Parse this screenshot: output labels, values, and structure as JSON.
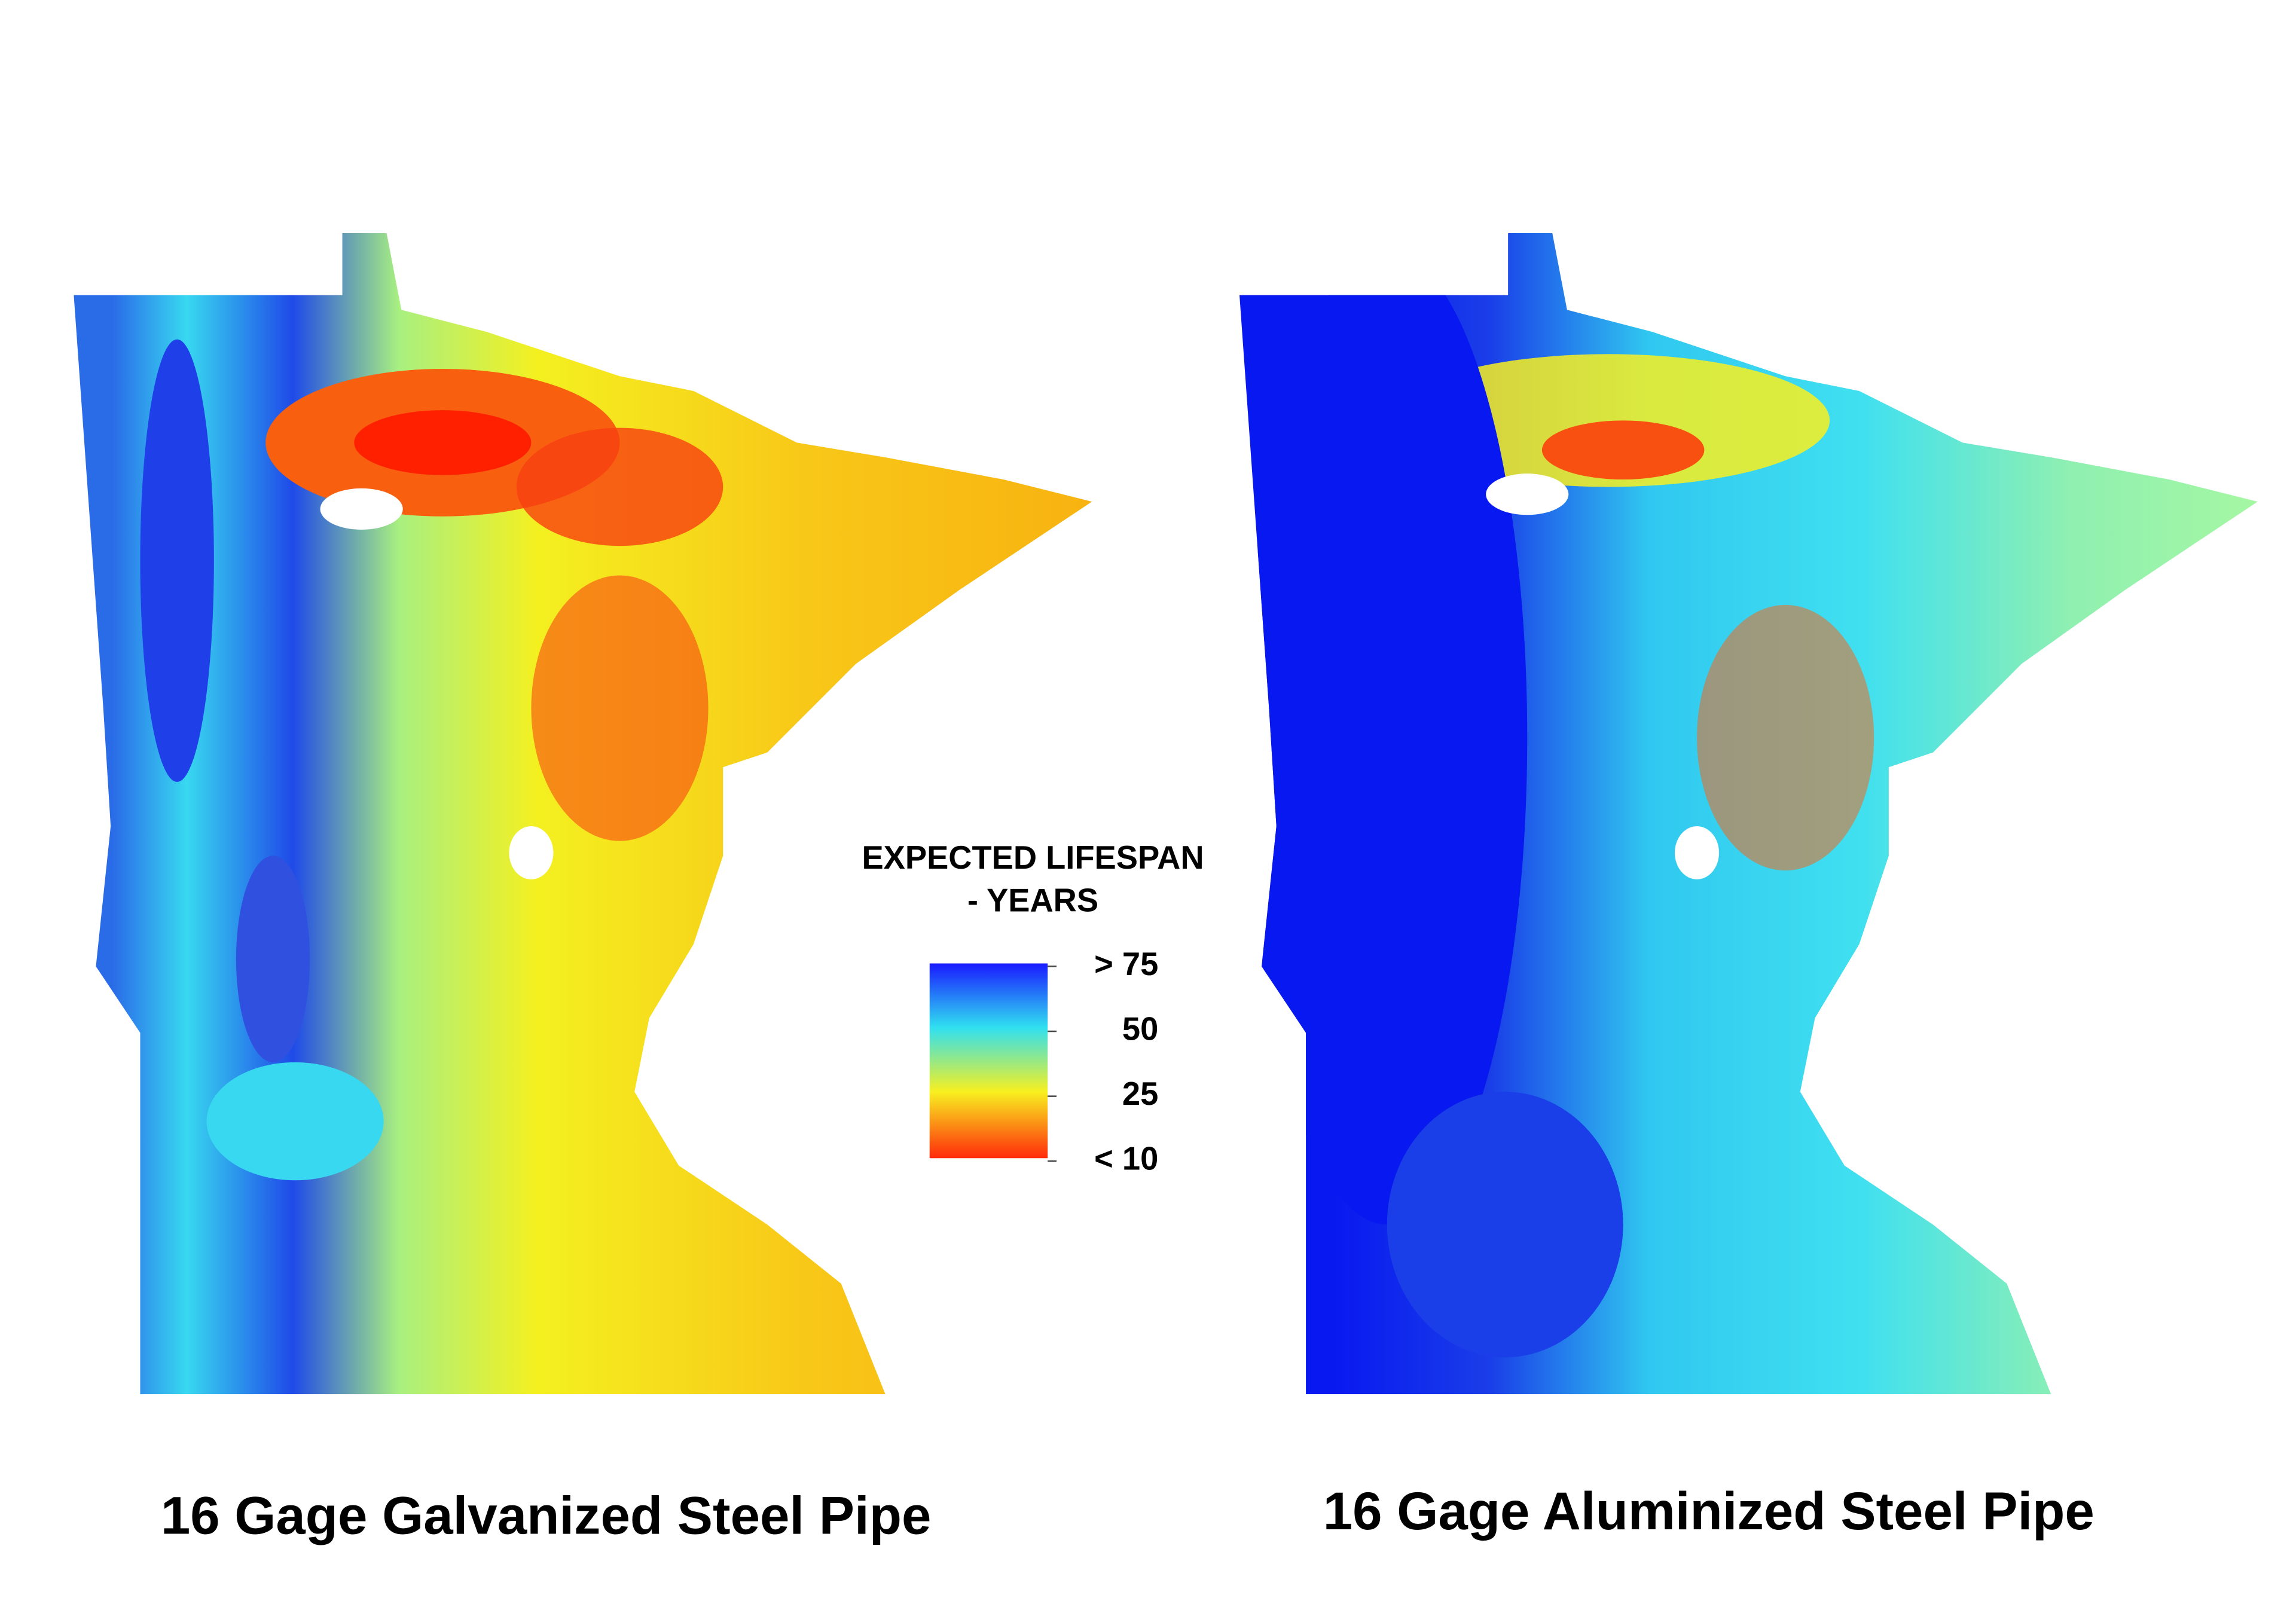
{
  "maps": [
    {
      "title": "16 Gage Galvanized Steel Pipe"
    },
    {
      "title": "16 Gage Aluminized Steel Pipe"
    }
  ],
  "legend": {
    "title": [
      "EXPECTED LIFESPAN",
      "- YEARS"
    ],
    "labels": [
      "> 75",
      "50",
      "25",
      "< 10"
    ]
  }
}
